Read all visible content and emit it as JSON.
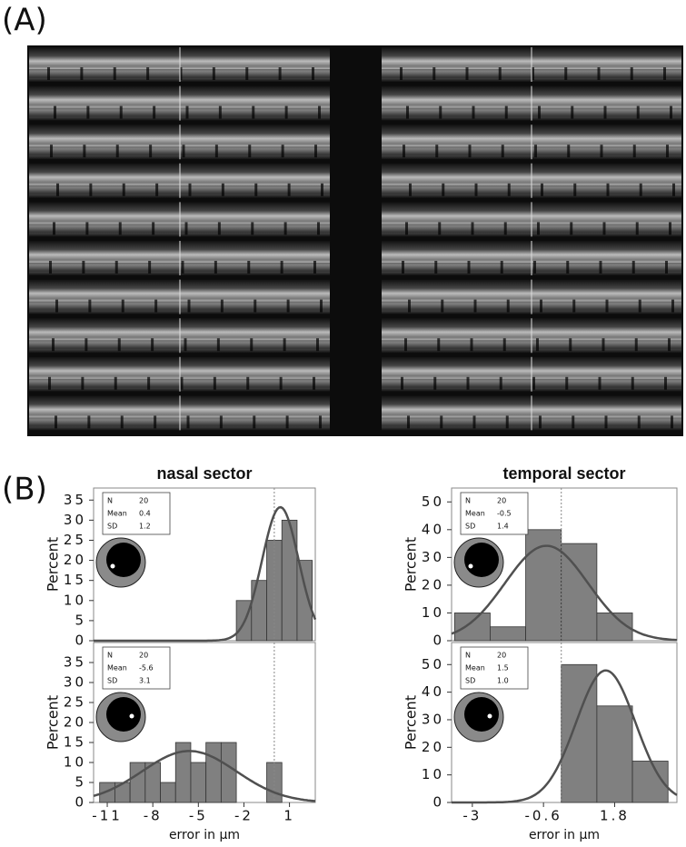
{
  "panels": [
    "(A)",
    "(B)"
  ],
  "chart_data": [
    {
      "type": "histogram",
      "title": "nasal sector",
      "ylabel": "Percent",
      "bins": [
        -2.5,
        -1.5,
        -0.5,
        0.5,
        1.5,
        2.5
      ],
      "values": [
        10,
        15,
        25,
        30,
        20
      ],
      "xlim": [
        -11.9,
        2.7
      ],
      "ylim": [
        0,
        38
      ],
      "yticks": [
        0,
        5,
        10,
        15,
        20,
        25,
        30,
        35
      ],
      "reference_x": 0,
      "color": "#808080",
      "curve_color": "#505050",
      "stats": [
        {
          "label": "N",
          "value": 20
        },
        {
          "label": "Mean",
          "value": 0.4
        },
        {
          "label": "SD",
          "value": 1.2
        }
      ]
    },
    {
      "type": "histogram",
      "ylabel": "Percent",
      "xlabel": "error in µm",
      "bins": [
        -11.5,
        -10.5,
        -9.5,
        -8.5,
        -7.5,
        -6.5,
        -5.5,
        -4.5,
        -3.5,
        -2.5,
        -1.5,
        -0.5,
        0.5
      ],
      "values": [
        5,
        5,
        10,
        10,
        5,
        15,
        10,
        15,
        15,
        0,
        0,
        10
      ],
      "xlim": [
        -11.9,
        2.7
      ],
      "ylim": [
        0,
        40
      ],
      "yticks": [
        0,
        5,
        10,
        15,
        20,
        25,
        30,
        35
      ],
      "xticks": [
        -11,
        -8,
        -5,
        -2,
        1
      ],
      "reference_x": 0,
      "color": "#808080",
      "curve_color": "#505050",
      "stats": [
        {
          "label": "N",
          "value": 20
        },
        {
          "label": "Mean",
          "value": -5.6
        },
        {
          "label": "SD",
          "value": 3.1
        }
      ]
    },
    {
      "type": "histogram",
      "title": "temporal sector",
      "ylabel": "Percent",
      "bins": [
        -3.6,
        -2.4,
        -1.2,
        0,
        1.2,
        2.4
      ],
      "values": [
        10,
        5,
        40,
        35,
        10
      ],
      "xlim": [
        -3.7,
        3.9
      ],
      "ylim": [
        0,
        55
      ],
      "yticks": [
        0,
        10,
        20,
        30,
        40,
        50
      ],
      "reference_x": 0,
      "color": "#808080",
      "curve_color": "#505050",
      "stats": [
        {
          "label": "N",
          "value": 20
        },
        {
          "label": "Mean",
          "value": -0.5
        },
        {
          "label": "SD",
          "value": 1.4
        }
      ]
    },
    {
      "type": "histogram",
      "ylabel": "Percent",
      "xlabel": "error in µm",
      "bins": [
        0,
        1.2,
        2.4,
        3.6
      ],
      "values": [
        50,
        35,
        15
      ],
      "xlim": [
        -3.7,
        3.9
      ],
      "ylim": [
        0,
        58
      ],
      "yticks": [
        0,
        10,
        20,
        30,
        40,
        50
      ],
      "xticks": [
        -3,
        -0.6,
        1.8
      ],
      "reference_x": 0,
      "color": "#808080",
      "curve_color": "#505050",
      "stats": [
        {
          "label": "N",
          "value": 20
        },
        {
          "label": "Mean",
          "value": 1.5
        },
        {
          "label": "SD",
          "value": {
            "value": 1,
            "label": "1.0"
          }
        }
      ]
    }
  ]
}
